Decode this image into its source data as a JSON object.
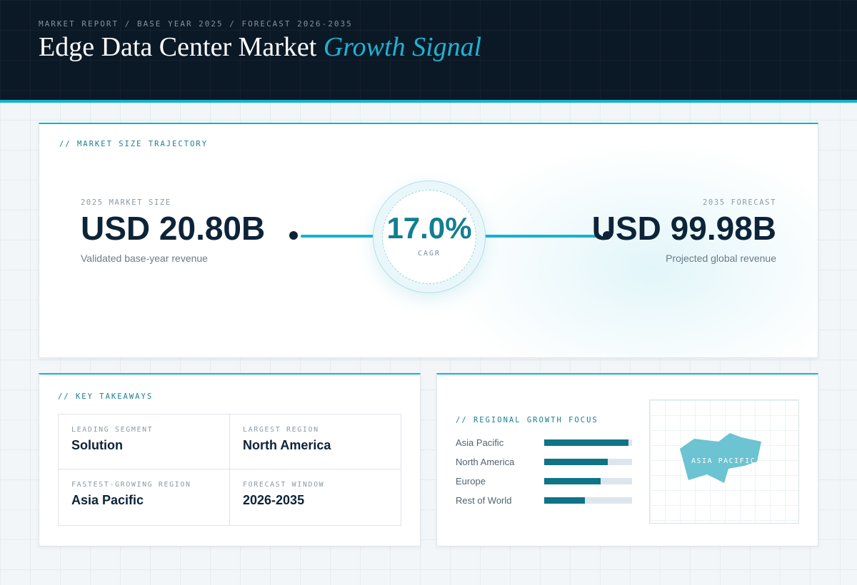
{
  "header": {
    "kicker": "MARKET REPORT / BASE YEAR 2025 / FORECAST 2026-2035",
    "title_main": "Edge Data Center Market",
    "title_accent": "Growth Signal"
  },
  "trajectory": {
    "label": "// MARKET SIZE TRAJECTORY",
    "start": {
      "caption": "2025 MARKET SIZE",
      "value": "USD 20.80B",
      "subtitle": "Validated base-year revenue"
    },
    "end": {
      "caption": "2035 FORECAST",
      "value": "USD 99.98B",
      "subtitle": "Projected global revenue"
    },
    "cagr": {
      "value": "17.0%",
      "caption": "CAGR"
    }
  },
  "takeaways": {
    "label": "// KEY TAKEAWAYS",
    "items": [
      {
        "caption": "LEADING SEGMENT",
        "value": "Solution"
      },
      {
        "caption": "LARGEST REGION",
        "value": "North America"
      },
      {
        "caption": "FASTEST-GROWING REGION",
        "value": "Asia Pacific"
      },
      {
        "caption": "FORECAST WINDOW",
        "value": "2026-2035"
      }
    ]
  },
  "regional": {
    "label": "// REGIONAL GROWTH FOCUS",
    "regions": [
      {
        "name": "Asia Pacific",
        "share": 0.96
      },
      {
        "name": "North America",
        "share": 0.72
      },
      {
        "name": "Europe",
        "share": 0.64
      },
      {
        "name": "Rest of World",
        "share": 0.46
      }
    ],
    "map_label": "ASIA PACIFIC",
    "map_color": "#6cc3d1",
    "bar_color": "#0f7487"
  },
  "colors": {
    "accent": "#14b3cf",
    "navy": "#0d2338",
    "teal": "#127e92"
  }
}
